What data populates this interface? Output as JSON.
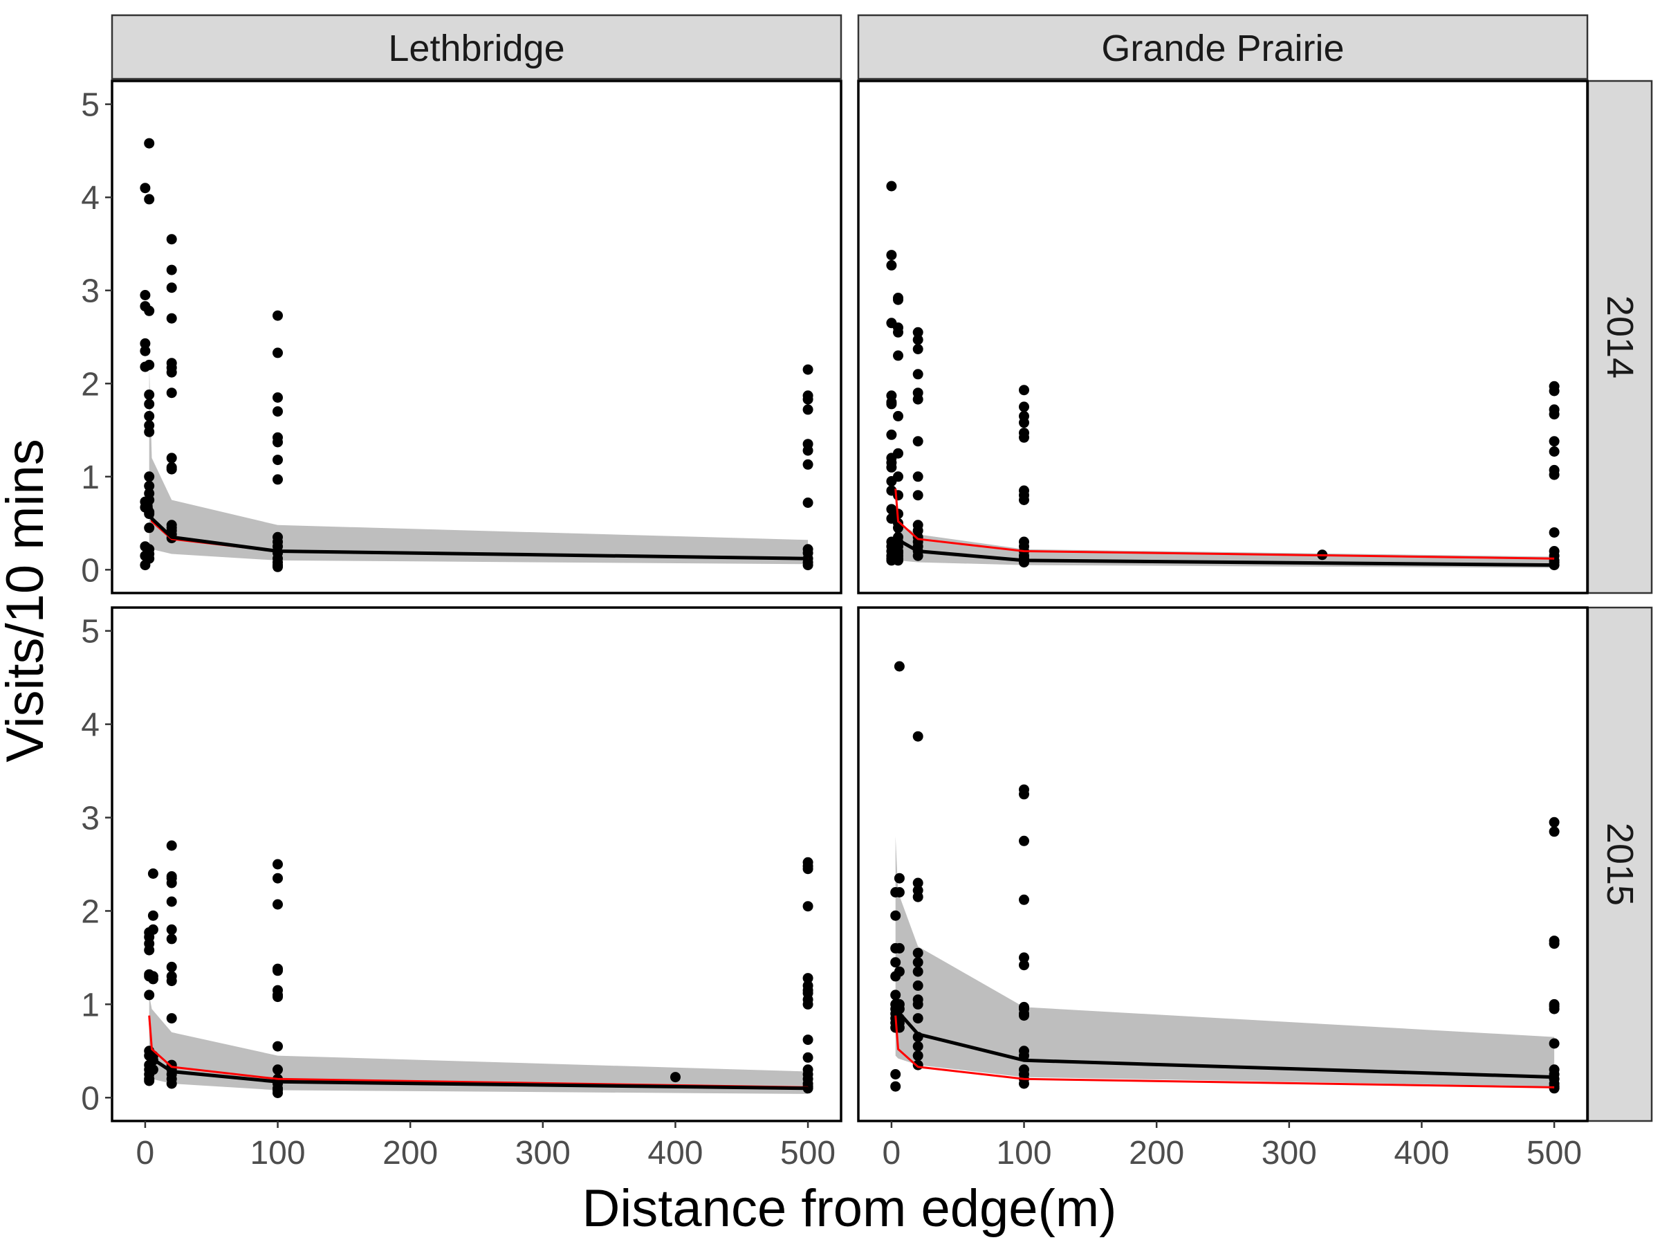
{
  "facets": {
    "columns": [
      "Lethbridge",
      "Grande Prairie"
    ],
    "rows": [
      "2014",
      "2015"
    ]
  },
  "axes": {
    "xlabel": "Distance from edge(m)",
    "ylabel": "Visits/10 mins",
    "xticks": [
      "0",
      "100",
      "200",
      "300",
      "400",
      "500"
    ],
    "yticks": [
      "0",
      "1",
      "2",
      "3",
      "4",
      "5"
    ]
  },
  "colors": {
    "points": "#000000",
    "fit_line": "#000000",
    "reference_line": "#ff0000",
    "ribbon": "#bebebe",
    "strip": "#d9d9d9"
  },
  "chart_data": {
    "type": "scatter",
    "xlim": [
      -25,
      525
    ],
    "ylim": [
      -0.25,
      5.25
    ],
    "grid": false,
    "panels": [
      {
        "site": "Lethbridge",
        "year": "2014",
        "points": {
          "x": [
            0,
            0,
            0,
            0,
            0,
            0,
            0,
            0,
            0,
            0,
            0,
            3,
            3,
            3,
            3,
            3,
            3,
            3,
            3,
            3,
            3,
            3,
            3,
            3,
            3,
            3,
            3,
            3,
            3,
            3,
            20,
            20,
            20,
            20,
            20,
            20,
            20,
            20,
            20,
            20,
            20,
            20,
            20,
            20,
            20,
            20,
            100,
            100,
            100,
            100,
            100,
            100,
            100,
            100,
            100,
            100,
            100,
            100,
            100,
            100,
            100,
            100,
            500,
            500,
            500,
            500,
            500,
            500,
            500,
            500,
            500,
            500,
            500,
            500,
            500
          ],
          "y": [
            4.1,
            2.95,
            2.83,
            2.43,
            2.35,
            2.18,
            0.73,
            0.67,
            0.25,
            0.15,
            0.05,
            4.58,
            3.98,
            2.78,
            2.2,
            1.88,
            1.78,
            1.65,
            1.55,
            1.48,
            0.9,
            0.75,
            0.62,
            0.22,
            0.17,
            0.12,
            1.0,
            0.82,
            0.6,
            0.45,
            3.55,
            3.22,
            3.03,
            2.7,
            2.22,
            2.17,
            2.12,
            1.9,
            1.2,
            1.1,
            1.08,
            0.48,
            0.45,
            0.42,
            0.38,
            0.34,
            2.73,
            2.33,
            1.85,
            1.7,
            1.42,
            1.37,
            1.18,
            0.97,
            0.35,
            0.3,
            0.25,
            0.18,
            0.12,
            0.08,
            0.05,
            0.03,
            2.15,
            1.87,
            1.83,
            1.72,
            1.35,
            1.28,
            1.13,
            0.72,
            0.22,
            0.18,
            0.12,
            0.08,
            0.05
          ]
        },
        "fit": {
          "x": [
            3,
            5,
            20,
            100,
            500
          ],
          "y": [
            0.93,
            0.55,
            0.35,
            0.2,
            0.12
          ]
        },
        "ribbon": {
          "x": [
            3,
            5,
            20,
            100,
            500
          ],
          "lower": [
            0.25,
            0.22,
            0.17,
            0.1,
            0.06
          ],
          "upper": [
            2.2,
            1.2,
            0.75,
            0.48,
            0.32
          ]
        },
        "reference": {
          "x": [
            3,
            5,
            20,
            100,
            500
          ],
          "y": [
            0.87,
            0.52,
            0.33,
            0.2,
            0.12
          ]
        }
      },
      {
        "site": "Grande Prairie",
        "year": "2014",
        "points": {
          "x": [
            0,
            0,
            0,
            0,
            0,
            0,
            0,
            0,
            0,
            0,
            0,
            0,
            0,
            0,
            0,
            0,
            0,
            0,
            0,
            0,
            0,
            5,
            5,
            5,
            5,
            5,
            5,
            5,
            5,
            5,
            5,
            5,
            5,
            5,
            5,
            5,
            5,
            5,
            5,
            5,
            5,
            20,
            20,
            20,
            20,
            20,
            20,
            20,
            20,
            20,
            20,
            20,
            20,
            20,
            20,
            20,
            20,
            100,
            100,
            100,
            100,
            100,
            100,
            100,
            100,
            100,
            100,
            100,
            100,
            100,
            100,
            100,
            100,
            325,
            500,
            500,
            500,
            500,
            500,
            500,
            500,
            500,
            500,
            500,
            500,
            500,
            500,
            500
          ],
          "y": [
            4.12,
            3.38,
            3.27,
            2.65,
            1.87,
            1.8,
            1.78,
            1.45,
            1.2,
            1.15,
            1.1,
            0.95,
            0.85,
            0.65,
            0.55,
            0.3,
            0.25,
            0.2,
            0.15,
            0.12,
            0.1,
            2.92,
            2.9,
            2.6,
            2.55,
            2.3,
            1.65,
            1.25,
            1.0,
            0.8,
            0.6,
            0.5,
            0.45,
            0.35,
            0.3,
            0.25,
            0.2,
            0.18,
            0.15,
            0.12,
            0.1,
            2.55,
            2.47,
            2.37,
            2.1,
            1.9,
            1.83,
            1.38,
            1.0,
            0.8,
            0.48,
            0.42,
            0.35,
            0.3,
            0.25,
            0.2,
            0.15,
            1.93,
            1.75,
            1.65,
            1.58,
            1.47,
            1.42,
            0.85,
            0.8,
            0.75,
            0.3,
            0.25,
            0.2,
            0.15,
            0.12,
            0.1,
            0.08,
            0.16,
            1.97,
            1.92,
            1.72,
            1.67,
            1.38,
            1.27,
            1.07,
            1.02,
            0.4,
            0.2,
            0.15,
            0.1,
            0.08,
            0.05
          ],
          "x_note": ""
        },
        "fit": {
          "x": [
            3,
            5,
            20,
            100,
            500
          ],
          "y": [
            0.5,
            0.32,
            0.2,
            0.1,
            0.05
          ]
        },
        "ribbon": {
          "x": [
            3,
            5,
            20,
            100,
            500
          ],
          "lower": [
            0.12,
            0.1,
            0.08,
            0.05,
            0.02
          ],
          "upper": [
            0.6,
            0.5,
            0.38,
            0.22,
            0.14
          ]
        },
        "reference": {
          "x": [
            3,
            5,
            20,
            100,
            500
          ],
          "y": [
            0.87,
            0.52,
            0.33,
            0.2,
            0.12
          ]
        }
      },
      {
        "site": "Lethbridge",
        "year": "2015",
        "points": {
          "x": [
            3,
            3,
            3,
            3,
            3,
            3,
            3,
            3,
            3,
            3,
            3,
            3,
            3,
            3,
            6,
            6,
            6,
            6,
            6,
            6,
            6,
            6,
            20,
            20,
            20,
            20,
            20,
            20,
            20,
            20,
            20,
            20,
            20,
            20,
            20,
            20,
            20,
            20,
            100,
            100,
            100,
            100,
            100,
            100,
            100,
            100,
            100,
            100,
            100,
            100,
            100,
            100,
            100,
            400,
            500,
            500,
            500,
            500,
            500,
            500,
            500,
            500,
            500,
            500,
            500,
            500,
            500,
            500,
            500,
            500,
            500,
            500
          ],
          "y": [
            1.77,
            1.72,
            1.65,
            1.58,
            1.32,
            1.3,
            1.1,
            0.5,
            0.45,
            0.35,
            0.3,
            0.25,
            0.2,
            0.18,
            2.4,
            1.95,
            1.8,
            1.3,
            1.27,
            0.45,
            0.4,
            0.3,
            2.7,
            2.37,
            2.35,
            2.3,
            2.1,
            1.8,
            1.7,
            1.4,
            1.3,
            1.25,
            0.85,
            0.35,
            0.3,
            0.25,
            0.2,
            0.15,
            2.5,
            2.35,
            2.07,
            1.38,
            1.36,
            1.15,
            1.1,
            1.08,
            0.55,
            0.3,
            0.2,
            0.15,
            0.1,
            0.08,
            0.05,
            0.22,
            2.52,
            2.48,
            2.45,
            2.05,
            1.28,
            1.2,
            1.15,
            1.12,
            1.05,
            1.0,
            0.62,
            0.43,
            0.3,
            0.25,
            0.2,
            0.15,
            0.12,
            0.1
          ]
        },
        "fit": {
          "x": [
            3,
            5,
            20,
            100,
            500
          ],
          "y": [
            0.42,
            0.42,
            0.28,
            0.17,
            0.1
          ]
        },
        "ribbon": {
          "x": [
            3,
            5,
            20,
            100,
            500
          ],
          "lower": [
            0.2,
            0.2,
            0.15,
            0.08,
            0.04
          ],
          "upper": [
            1.1,
            0.95,
            0.7,
            0.45,
            0.28
          ]
        },
        "reference": {
          "x": [
            3,
            5,
            20,
            100,
            500
          ],
          "y": [
            0.88,
            0.52,
            0.33,
            0.2,
            0.11
          ]
        }
      },
      {
        "site": "Grande Prairie",
        "year": "2015",
        "points": {
          "x": [
            3,
            3,
            3,
            3,
            3,
            3,
            3,
            3,
            3,
            3,
            3,
            3,
            3,
            3,
            6,
            6,
            6,
            6,
            6,
            6,
            6,
            6,
            6,
            6,
            20,
            20,
            20,
            20,
            20,
            20,
            20,
            20,
            20,
            20,
            20,
            20,
            20,
            20,
            20,
            100,
            100,
            100,
            100,
            100,
            100,
            100,
            100,
            100,
            100,
            100,
            100,
            100,
            100,
            100,
            100,
            500,
            500,
            500,
            500,
            500,
            500,
            500,
            500,
            500,
            500,
            500,
            500,
            500,
            500
          ],
          "y": [
            2.2,
            1.95,
            1.6,
            1.45,
            1.3,
            1.1,
            1.0,
            0.95,
            0.9,
            0.85,
            0.8,
            0.75,
            0.25,
            0.12,
            4.62,
            2.35,
            2.2,
            1.6,
            1.35,
            1.0,
            0.95,
            0.85,
            0.8,
            0.75,
            3.87,
            2.3,
            2.22,
            2.15,
            1.55,
            1.45,
            1.35,
            1.2,
            1.05,
            1.0,
            0.85,
            0.65,
            0.55,
            0.45,
            0.35,
            3.3,
            3.25,
            2.75,
            2.12,
            1.5,
            1.42,
            0.97,
            0.95,
            0.9,
            0.88,
            0.5,
            0.45,
            0.3,
            0.25,
            0.2,
            0.15,
            2.95,
            2.85,
            1.68,
            1.65,
            1.0,
            0.98,
            0.95,
            0.58,
            0.3,
            0.25,
            0.2,
            0.15,
            0.12,
            0.1
          ]
        },
        "fit": {
          "x": [
            3,
            5,
            20,
            100,
            500
          ],
          "y": [
            0.95,
            0.92,
            0.68,
            0.4,
            0.22
          ]
        },
        "ribbon": {
          "x": [
            3,
            5,
            20,
            100,
            500
          ],
          "lower": [
            0.45,
            0.42,
            0.35,
            0.22,
            0.12
          ],
          "upper": [
            2.8,
            2.2,
            1.62,
            0.97,
            0.65
          ]
        },
        "reference": {
          "x": [
            3,
            5,
            20,
            100,
            500
          ],
          "y": [
            0.88,
            0.52,
            0.33,
            0.2,
            0.11
          ]
        }
      }
    ]
  }
}
